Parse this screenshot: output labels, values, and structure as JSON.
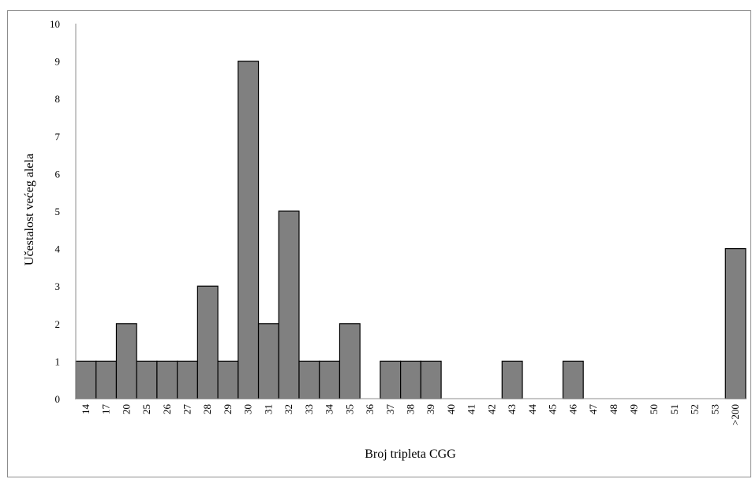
{
  "chart_data": {
    "type": "bar",
    "xlabel": "Broj tripleta CGG",
    "ylabel": "Učestalost većeg alela",
    "ylim": [
      0,
      10
    ],
    "yticks": [
      0,
      1,
      2,
      3,
      4,
      5,
      6,
      7,
      8,
      9,
      10
    ],
    "grid": false,
    "legend": "none",
    "bar_color": "#808080",
    "bar_edge_color": "#000000",
    "categories": [
      "14",
      "17",
      "20",
      "25",
      "26",
      "27",
      "28",
      "29",
      "30",
      "31",
      "32",
      "33",
      "34",
      "35",
      "36",
      "37",
      "38",
      "39",
      "40",
      "41",
      "42",
      "43",
      "44",
      "45",
      "46",
      "47",
      "48",
      "49",
      "50",
      "51",
      "52",
      "53",
      ">200"
    ],
    "values": [
      1,
      1,
      2,
      1,
      1,
      1,
      3,
      1,
      9,
      2,
      5,
      1,
      1,
      2,
      0,
      1,
      1,
      1,
      0,
      0,
      0,
      1,
      0,
      0,
      1,
      0,
      0,
      0,
      0,
      0,
      0,
      0,
      4
    ]
  }
}
